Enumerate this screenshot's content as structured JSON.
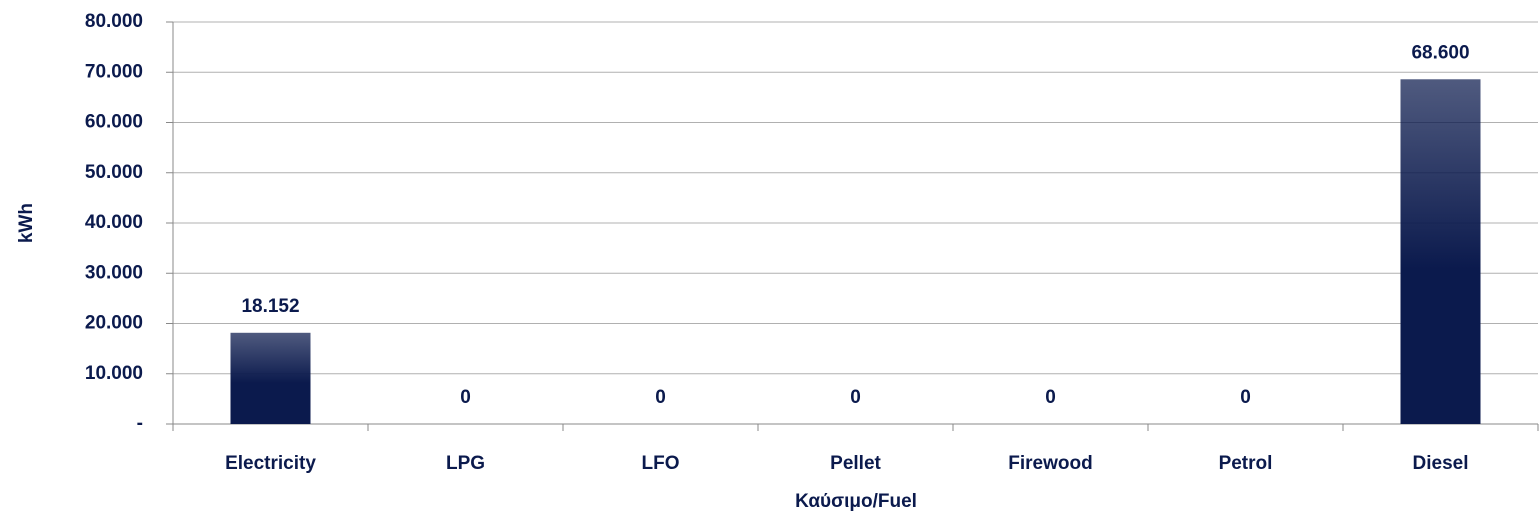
{
  "chart_data": {
    "type": "bar",
    "x_label": "Καύσιμο/Fuel",
    "y_label": "kWh",
    "categories": [
      "Electricity",
      "LPG",
      "LFO",
      "Pellet",
      "Firewood",
      "Petrol",
      "Diesel"
    ],
    "values": [
      18152,
      0,
      0,
      0,
      0,
      0,
      68600
    ],
    "value_labels": [
      "18.152",
      "0",
      "0",
      "0",
      "0",
      "0",
      "68.600"
    ],
    "color": "#0b1a4d",
    "ylim": [
      0,
      80000
    ],
    "yticks": [
      {
        "value": 0,
        "label": "-"
      },
      {
        "value": 10000,
        "label": "10.000"
      },
      {
        "value": 20000,
        "label": "20.000"
      },
      {
        "value": 30000,
        "label": "30.000"
      },
      {
        "value": 40000,
        "label": "40.000"
      },
      {
        "value": 50000,
        "label": "50.000"
      },
      {
        "value": 60000,
        "label": "60.000"
      },
      {
        "value": 70000,
        "label": "70.000"
      },
      {
        "value": 80000,
        "label": "80.000"
      }
    ],
    "grid": true
  }
}
